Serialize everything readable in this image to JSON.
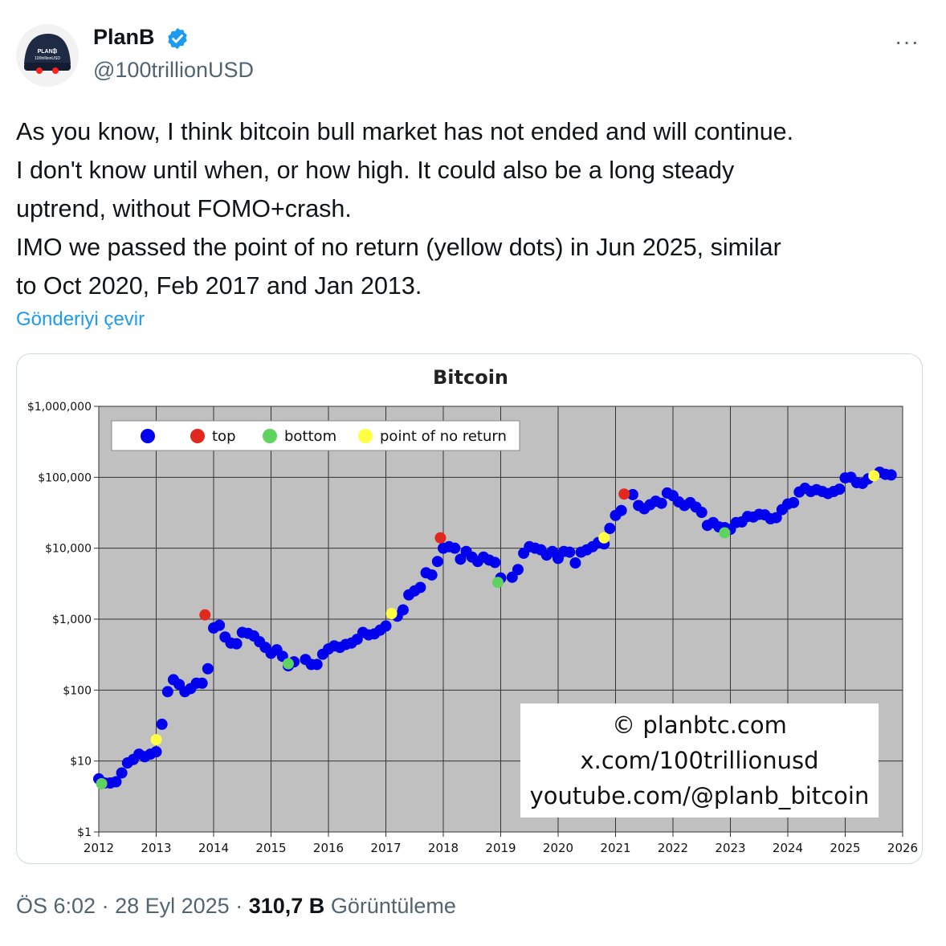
{
  "author": {
    "name": "PlanB",
    "handle": "@100trillionUSD",
    "avatar_text": [
      "PLAN₿",
      "100trillionUSD"
    ]
  },
  "more_label": "···",
  "tweet_lines": [
    "As you know, I think bitcoin bull market has not ended and will continue.",
    "I don't know until when, or how high. It could also be a long steady",
    "uptrend, without FOMO+crash.",
    "IMO we passed the point of no return (yellow dots) in Jun 2025, similar",
    "to Oct 2020, Feb 2017 and Jan 2013."
  ],
  "translate_label": "Gönderiyi çevir",
  "meta": {
    "time": "ÖS 6:02",
    "sep1": "·",
    "date": "28 Eyl 2025",
    "sep2": "·",
    "views_count": "310,7 B",
    "views_label": "Görüntüleme"
  },
  "colors": {
    "accent": "#1d9bf0",
    "series": "#0000ee",
    "top": "#e0281e",
    "bottom": "#5fd35f",
    "point_of_no_return": "#ffff44",
    "plot_bg": "#c0c0c0"
  },
  "chart_data": {
    "type": "scatter",
    "title": "Bitcoin",
    "y_scale": "log",
    "ylim": [
      1,
      1000000
    ],
    "xlim": [
      2012,
      2026
    ],
    "y_ticks": [
      "$1",
      "$10",
      "$100",
      "$1,000",
      "$10,000",
      "$100,000",
      "$1,000,000"
    ],
    "x_ticks": [
      "2012",
      "2013",
      "2014",
      "2015",
      "2016",
      "2017",
      "2018",
      "2019",
      "2020",
      "2021",
      "2022",
      "2023",
      "2024",
      "2025",
      "2026"
    ],
    "grid": true,
    "legend_position": "top-left",
    "legend": [
      "",
      "top",
      "bottom",
      "point of no return"
    ],
    "watermark": [
      "© planbtc.com",
      "x.com/100trillionusd",
      "youtube.com/@planb_bitcoin"
    ],
    "series": [
      {
        "color": "blue",
        "points": [
          [
            2012.0,
            5.6
          ],
          [
            2012.1,
            4.9
          ],
          [
            2012.2,
            4.9
          ],
          [
            2012.3,
            5.1
          ],
          [
            2012.4,
            6.8
          ],
          [
            2012.5,
            9.4
          ],
          [
            2012.6,
            10.5
          ],
          [
            2012.7,
            12.5
          ],
          [
            2012.8,
            11.5
          ],
          [
            2012.9,
            12.5
          ],
          [
            2013.0,
            13.5
          ],
          [
            2013.1,
            33
          ],
          [
            2013.2,
            95
          ],
          [
            2013.3,
            140
          ],
          [
            2013.4,
            120
          ],
          [
            2013.5,
            95
          ],
          [
            2013.6,
            105
          ],
          [
            2013.7,
            125
          ],
          [
            2013.8,
            125
          ],
          [
            2013.9,
            200
          ],
          [
            2014.0,
            750
          ],
          [
            2014.1,
            820
          ],
          [
            2014.2,
            560
          ],
          [
            2014.3,
            460
          ],
          [
            2014.4,
            450
          ],
          [
            2014.5,
            650
          ],
          [
            2014.6,
            630
          ],
          [
            2014.7,
            580
          ],
          [
            2014.8,
            480
          ],
          [
            2014.9,
            400
          ],
          [
            2015.0,
            330
          ],
          [
            2015.1,
            370
          ],
          [
            2015.2,
            300
          ],
          [
            2015.3,
            220
          ],
          [
            2015.4,
            250
          ],
          [
            2015.6,
            270
          ],
          [
            2015.7,
            230
          ],
          [
            2015.8,
            230
          ],
          [
            2015.9,
            320
          ],
          [
            2016.0,
            380
          ],
          [
            2016.1,
            420
          ],
          [
            2016.2,
            400
          ],
          [
            2016.3,
            440
          ],
          [
            2016.4,
            460
          ],
          [
            2016.5,
            520
          ],
          [
            2016.6,
            650
          ],
          [
            2016.7,
            600
          ],
          [
            2016.8,
            620
          ],
          [
            2016.9,
            700
          ],
          [
            2017.0,
            800
          ],
          [
            2017.2,
            1100
          ],
          [
            2017.3,
            1350
          ],
          [
            2017.4,
            2200
          ],
          [
            2017.5,
            2500
          ],
          [
            2017.6,
            2800
          ],
          [
            2017.7,
            4500
          ],
          [
            2017.8,
            4200
          ],
          [
            2017.9,
            6500
          ],
          [
            2018.0,
            10000
          ],
          [
            2018.1,
            10500
          ],
          [
            2018.2,
            10000
          ],
          [
            2018.3,
            7000
          ],
          [
            2018.4,
            9000
          ],
          [
            2018.5,
            7500
          ],
          [
            2018.6,
            6500
          ],
          [
            2018.7,
            7500
          ],
          [
            2018.8,
            6800
          ],
          [
            2018.9,
            6300
          ],
          [
            2019.0,
            3800
          ],
          [
            2019.2,
            3900
          ],
          [
            2019.3,
            5000
          ],
          [
            2019.4,
            8500
          ],
          [
            2019.5,
            10500
          ],
          [
            2019.6,
            10000
          ],
          [
            2019.7,
            9500
          ],
          [
            2019.8,
            8000
          ],
          [
            2019.9,
            9000
          ],
          [
            2020.0,
            7200
          ],
          [
            2020.1,
            9000
          ],
          [
            2020.2,
            8800
          ],
          [
            2020.3,
            6200
          ],
          [
            2020.4,
            8800
          ],
          [
            2020.5,
            9500
          ],
          [
            2020.6,
            10500
          ],
          [
            2020.7,
            12000
          ],
          [
            2020.8,
            11500
          ],
          [
            2020.9,
            19000
          ],
          [
            2021.0,
            29000
          ],
          [
            2021.1,
            34000
          ],
          [
            2021.3,
            57000
          ],
          [
            2021.4,
            40000
          ],
          [
            2021.5,
            36000
          ],
          [
            2021.6,
            41000
          ],
          [
            2021.7,
            46000
          ],
          [
            2021.8,
            43000
          ],
          [
            2021.9,
            60000
          ],
          [
            2022.0,
            55000
          ],
          [
            2022.1,
            45000
          ],
          [
            2022.2,
            40000
          ],
          [
            2022.3,
            44000
          ],
          [
            2022.4,
            38000
          ],
          [
            2022.5,
            32000
          ],
          [
            2022.6,
            21000
          ],
          [
            2022.7,
            23000
          ],
          [
            2022.8,
            20000
          ],
          [
            2022.9,
            19500
          ],
          [
            2023.0,
            18500
          ],
          [
            2023.1,
            23000
          ],
          [
            2023.2,
            23500
          ],
          [
            2023.3,
            28000
          ],
          [
            2023.4,
            27500
          ],
          [
            2023.5,
            30000
          ],
          [
            2023.6,
            29500
          ],
          [
            2023.7,
            26000
          ],
          [
            2023.8,
            27000
          ],
          [
            2023.9,
            35000
          ],
          [
            2024.0,
            42000
          ],
          [
            2024.1,
            44000
          ],
          [
            2024.2,
            62000
          ],
          [
            2024.3,
            70000
          ],
          [
            2024.4,
            63000
          ],
          [
            2024.5,
            67000
          ],
          [
            2024.6,
            63000
          ],
          [
            2024.7,
            59000
          ],
          [
            2024.8,
            63000
          ],
          [
            2024.9,
            68000
          ],
          [
            2025.0,
            98000
          ],
          [
            2025.1,
            100000
          ],
          [
            2025.2,
            84000
          ],
          [
            2025.3,
            82000
          ],
          [
            2025.4,
            95000
          ],
          [
            2025.6,
            118000
          ],
          [
            2025.7,
            110000
          ],
          [
            2025.8,
            108000
          ]
        ]
      },
      {
        "color": "top",
        "points": [
          [
            2013.85,
            1150
          ],
          [
            2017.95,
            14000
          ],
          [
            2021.15,
            58000
          ]
        ]
      },
      {
        "color": "bottom",
        "points": [
          [
            2012.05,
            4.8
          ],
          [
            2015.3,
            235
          ],
          [
            2018.95,
            3300
          ],
          [
            2022.9,
            16500
          ]
        ]
      },
      {
        "color": "point_of_no_return",
        "points": [
          [
            2013.0,
            20
          ],
          [
            2017.1,
            1200
          ],
          [
            2020.8,
            14000
          ],
          [
            2025.5,
            105000
          ]
        ]
      }
    ]
  }
}
